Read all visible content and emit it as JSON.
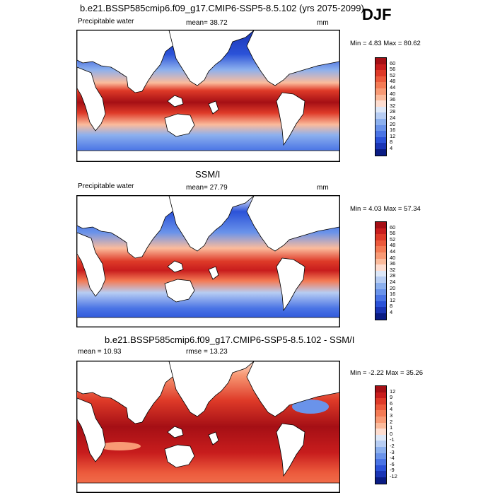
{
  "header": {
    "title": "b.e21.BSSP585cmip6.f09_g17.CMIP6-SSP5-8.5.102 (yrs 2075-2099)",
    "season": "DJF"
  },
  "panels": [
    {
      "title": "",
      "left": "Precipitable water",
      "center": "mean=  38.72",
      "right": "mm",
      "minmax": "Min =   4.83 Max =  80.62",
      "levels": [
        "60",
        "56",
        "52",
        "48",
        "44",
        "40",
        "36",
        "32",
        "28",
        "24",
        "20",
        "16",
        "12",
        "8",
        "4"
      ],
      "colors": [
        "#a50f15",
        "#c81d1d",
        "#de3a28",
        "#ec5a3c",
        "#f47b55",
        "#f89a75",
        "#fbbb9c",
        "#fdddd0",
        "#dde7f7",
        "#b7cdf3",
        "#8cb0ee",
        "#6a93ea",
        "#4a74e5",
        "#2b52d8",
        "#1a35b5",
        "#0a1c84"
      ]
    },
    {
      "title": "SSM/I",
      "left": "Precipitable water",
      "center": "mean=  27.79",
      "right": "mm",
      "minmax": "Min =   4.03 Max =  57.34",
      "levels": [
        "60",
        "56",
        "52",
        "48",
        "44",
        "40",
        "36",
        "32",
        "28",
        "24",
        "20",
        "16",
        "12",
        "8",
        "4"
      ],
      "colors": [
        "#a50f15",
        "#c81d1d",
        "#de3a28",
        "#ec5a3c",
        "#f47b55",
        "#f89a75",
        "#fbbb9c",
        "#fdddd0",
        "#dde7f7",
        "#b7cdf3",
        "#8cb0ee",
        "#6a93ea",
        "#4a74e5",
        "#2b52d8",
        "#1a35b5",
        "#0a1c84"
      ]
    },
    {
      "title": "b.e21.BSSP585cmip6.f09_g17.CMIP6-SSP5-8.5.102 - SSM/I",
      "left": "mean =  10.93",
      "center": "rmse =  13.23",
      "right": "",
      "minmax": "Min =  -2.22 Max =  35.26",
      "levels": [
        "12",
        "9",
        "6",
        "4",
        "3",
        "2",
        "1",
        "0",
        "-1",
        "-2",
        "-3",
        "-4",
        "-6",
        "-9",
        "-12"
      ],
      "colors": [
        "#a50f15",
        "#c81d1d",
        "#de3a28",
        "#ec5a3c",
        "#f47b55",
        "#f89a75",
        "#fbbb9c",
        "#fdddd0",
        "#dde7f7",
        "#b7cdf3",
        "#8cb0ee",
        "#6a93ea",
        "#4a74e5",
        "#2b52d8",
        "#1a35b5",
        "#0a1c84"
      ]
    }
  ]
}
